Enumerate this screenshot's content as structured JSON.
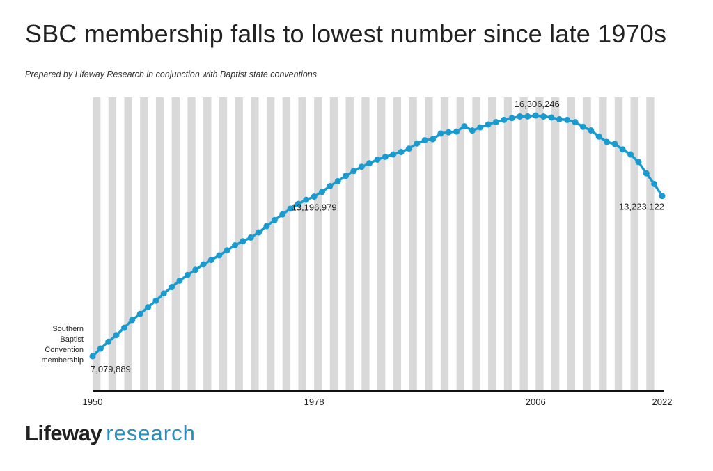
{
  "title": "SBC membership falls to lowest number since late 1970s",
  "subtitle": "Prepared by Lifeway Research in conjunction with Baptist state conventions",
  "logo": {
    "brand": "Lifeway",
    "suffix": "research"
  },
  "colors": {
    "line": "#1a9bd0",
    "band": "#d9d9d9",
    "axis": "#111111",
    "logo_accent": "#2b8fbd"
  },
  "chart_data": {
    "type": "line",
    "title": "SBC membership falls to lowest number since late 1970s",
    "ylabel_lines": [
      "Southern",
      "Baptist",
      "Convention",
      "membership"
    ],
    "x_ticks": [
      1950,
      1978,
      2006,
      2022
    ],
    "xlim": [
      1950,
      2022
    ],
    "ylim": [
      5800000,
      17000000
    ],
    "grid": "alternating vertical bands per year",
    "series": [
      {
        "x": [
          1950,
          1951,
          1952,
          1953,
          1954,
          1955,
          1956,
          1957,
          1958,
          1959,
          1960,
          1961,
          1962,
          1963,
          1964,
          1965,
          1966,
          1967,
          1968,
          1969,
          1970,
          1971,
          1972,
          1973,
          1974,
          1975,
          1976,
          1977,
          1978,
          1979,
          1980,
          1981,
          1982,
          1983,
          1984,
          1985,
          1986,
          1987,
          1988,
          1989,
          1990,
          1991,
          1992,
          1993,
          1994,
          1995,
          1996,
          1997,
          1998,
          1999,
          2000,
          2001,
          2002,
          2003,
          2004,
          2005,
          2006,
          2007,
          2008,
          2009,
          2010,
          2011,
          2012,
          2013,
          2014,
          2015,
          2016,
          2017,
          2018,
          2019,
          2020,
          2021,
          2022
        ],
        "y": [
          7079889,
          7373000,
          7634000,
          7887000,
          8170000,
          8468000,
          8700000,
          8956000,
          9207000,
          9485000,
          9732000,
          9978000,
          10192000,
          10394000,
          10601000,
          10771000,
          10947000,
          11140000,
          11332000,
          11488000,
          11629000,
          11826000,
          12067000,
          12296000,
          12516000,
          12736000,
          12918000,
          13078000,
          13196979,
          13379000,
          13601000,
          13790000,
          13992000,
          14179000,
          14340000,
          14478000,
          14614000,
          14722000,
          14812000,
          14907000,
          15038000,
          15232000,
          15358000,
          15398000,
          15614000,
          15663000,
          15691000,
          15891000,
          15729000,
          15851000,
          15960000,
          16053000,
          16137000,
          16206000,
          16267000,
          16270000,
          16306246,
          16266000,
          16228000,
          16160000,
          16136000,
          16049000,
          15872000,
          15735000,
          15500000,
          15294000,
          15217000,
          15005000,
          14813000,
          14525000,
          14089000,
          13680000,
          13223122
        ],
        "labels": [
          {
            "year": 1950,
            "text": "7,079,889"
          },
          {
            "year": 1978,
            "text": "13,196,979"
          },
          {
            "year": 2006,
            "text": "16,306,246"
          },
          {
            "year": 2022,
            "text": "13,223,122"
          }
        ]
      }
    ]
  }
}
